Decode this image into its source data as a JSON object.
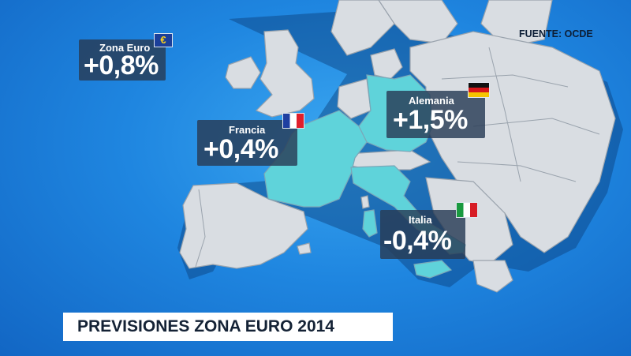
{
  "source": "FUENTE: OCDE",
  "caption": "PREVISIONES ZONA EURO 2014",
  "labels": {
    "eurozone": {
      "name": "Zona Euro",
      "value": "+0,8%",
      "flag_icon": "eu-flag-icon",
      "flag_symbol": "€"
    },
    "germany": {
      "name": "Alemania",
      "value": "+1,5%",
      "flag_icon": "germany-flag-icon"
    },
    "france": {
      "name": "Francia",
      "value": "+0,4%",
      "flag_icon": "france-flag-icon"
    },
    "italy": {
      "name": "Italia",
      "value": "-0,4%",
      "flag_icon": "italy-flag-icon"
    }
  },
  "colors": {
    "background": "#1f86e0",
    "land": "#d9dde2",
    "highlight": "#5fd3da",
    "label_bg": "#283c55"
  }
}
